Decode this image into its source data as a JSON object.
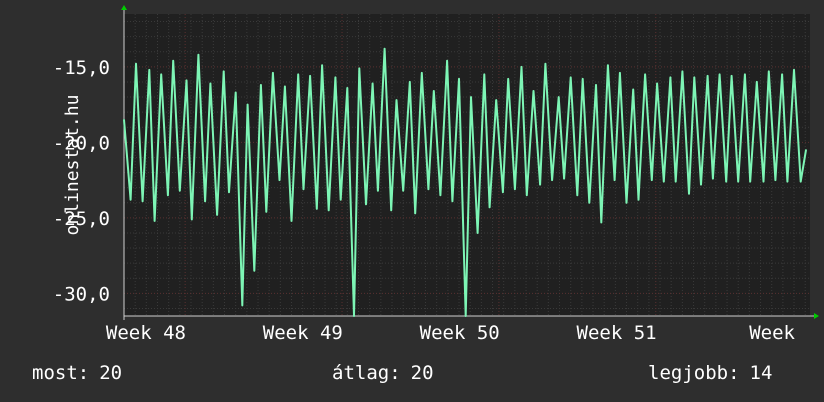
{
  "watermark": "onlinestat.hu",
  "colors": {
    "background": "#2e2e2e",
    "plot_background": "#202020",
    "line": "#7df5b5",
    "minor_grid": "#3a3a3a",
    "major_grid": "#5a3030",
    "axis": "#d0d0d0",
    "axis_arrow": "#00cc00"
  },
  "footer": {
    "current_label": "most:",
    "current_value": "20",
    "average_label": "átlag:",
    "average_value": "20",
    "best_label": "legjobb:",
    "best_value": "14"
  },
  "chart_data": {
    "type": "line",
    "title": "",
    "xlabel": "",
    "ylabel": "",
    "ylim": [
      -31.5,
      -11.5
    ],
    "yticks": [
      -15,
      -20,
      -25,
      -30
    ],
    "ytick_labels": [
      "-15,0",
      "-20,0",
      "-25,0",
      "-30,0"
    ],
    "xticks": [
      {
        "label": "Week 48",
        "x": 14.6
      },
      {
        "label": "Week 49",
        "x": 26.4
      },
      {
        "label": "Week 50",
        "x": 38.2
      },
      {
        "label": "Week 51",
        "x": 50.0
      },
      {
        "label": "Week",
        "x": 61.7
      }
    ],
    "xlim": [
      10,
      61.6
    ],
    "grid": true,
    "series": [
      {
        "x": [
          10.0,
          10.5,
          10.9,
          11.4,
          11.9,
          12.3,
          12.8,
          13.3,
          13.7,
          14.2,
          14.7,
          15.1,
          15.6,
          16.1,
          16.5,
          17.0,
          17.5,
          17.9,
          18.4,
          18.9,
          19.3,
          19.8,
          20.3,
          20.7,
          21.2,
          21.7,
          22.1,
          22.6,
          23.1,
          23.5,
          24.0,
          24.5,
          24.9,
          25.4,
          25.9,
          26.3,
          26.8,
          27.3,
          27.7,
          28.2,
          28.7,
          29.1,
          29.6,
          30.1,
          30.5,
          31.0,
          31.5,
          31.9,
          32.4,
          32.9,
          33.3,
          33.8,
          34.3,
          34.7,
          35.2,
          35.7,
          36.1,
          36.6,
          37.1,
          37.5,
          38.0,
          38.5,
          38.9,
          39.4,
          39.9,
          40.3,
          40.8,
          41.3,
          41.7,
          42.2,
          42.7,
          43.1,
          43.6,
          44.1,
          44.5,
          45.0,
          45.5,
          45.9,
          46.4,
          46.9,
          47.3,
          47.8,
          48.3,
          48.7,
          49.2,
          49.7,
          50.1,
          50.6,
          51.1,
          51.5,
          52.0,
          52.5,
          52.9,
          53.4,
          53.9,
          54.3,
          54.8,
          55.3,
          55.7,
          56.2,
          56.7,
          57.1,
          57.6,
          58.1,
          58.5,
          59.0,
          59.5,
          59.9,
          60.4,
          60.9,
          61.3
        ],
        "values": [
          -18.5,
          -23.8,
          -14.8,
          -23.9,
          -15.2,
          -25.2,
          -15.5,
          -23.5,
          -14.6,
          -23.2,
          -15.9,
          -25.1,
          -14.2,
          -23.9,
          -16.1,
          -24.8,
          -15.3,
          -23.3,
          -16.7,
          -30.8,
          -17.5,
          -28.5,
          -16.2,
          -24.6,
          -15.4,
          -22.5,
          -16.3,
          -25.2,
          -15.5,
          -23.1,
          -15.6,
          -24.4,
          -14.9,
          -24.5,
          -15.7,
          -23.8,
          -16.4,
          -31.5,
          -15.1,
          -24.1,
          -16.1,
          -23.2,
          -13.8,
          -24.5,
          -17.2,
          -23.2,
          -16.0,
          -24.7,
          -15.4,
          -23.1,
          -16.6,
          -23.5,
          -14.6,
          -23.9,
          -15.8,
          -31.5,
          -17.0,
          -26.0,
          -15.5,
          -24.3,
          -17.2,
          -23.3,
          -15.8,
          -23.1,
          -15.0,
          -23.5,
          -16.6,
          -22.8,
          -14.8,
          -22.5,
          -17.0,
          -22.4,
          -15.7,
          -23.5,
          -15.8,
          -24.0,
          -16.2,
          -25.3,
          -14.9,
          -22.5,
          -15.4,
          -24.0,
          -16.5,
          -23.8,
          -15.5,
          -22.5,
          -16.1,
          -22.6,
          -15.7,
          -22.6,
          -15.3,
          -23.4,
          -15.7,
          -22.8,
          -15.6,
          -22.4,
          -15.5,
          -22.6,
          -15.6,
          -22.6,
          -15.5,
          -22.6,
          -16.0,
          -22.6,
          -15.3,
          -22.5,
          -15.5,
          -22.6,
          -15.2,
          -22.6,
          -20.5
        ]
      }
    ]
  }
}
